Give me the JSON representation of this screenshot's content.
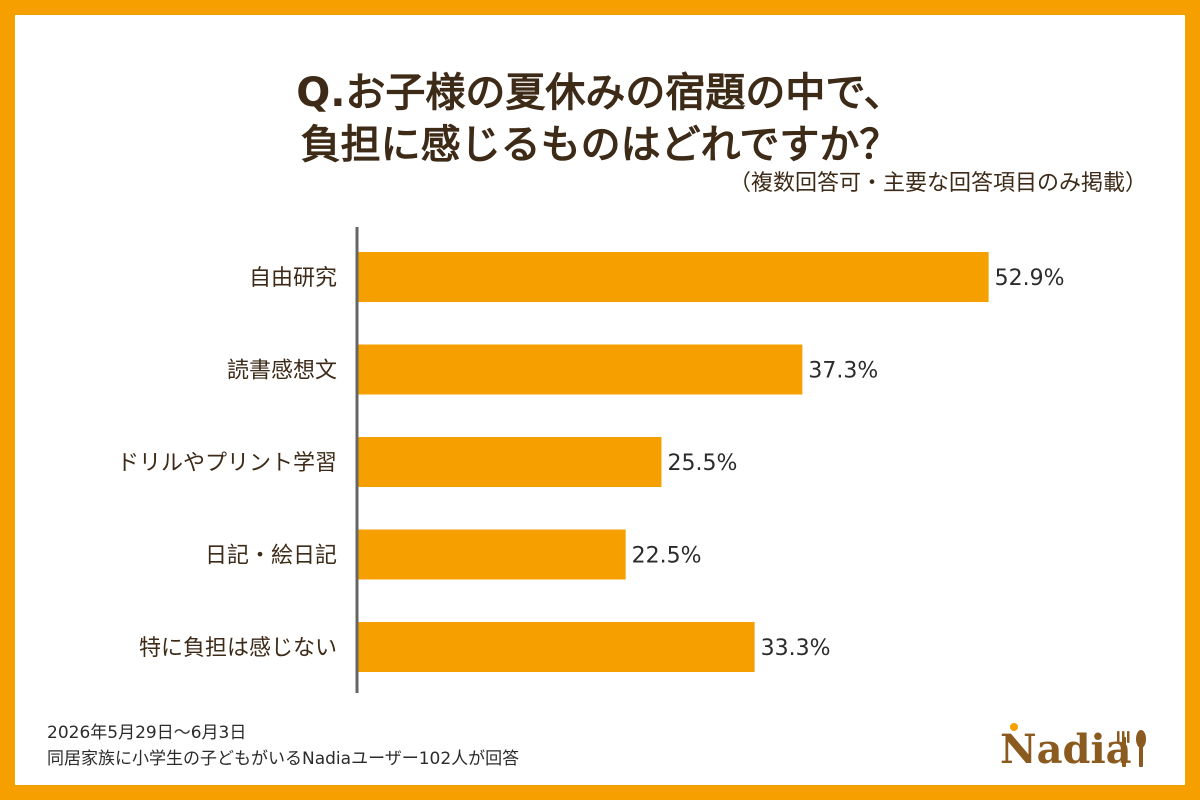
{
  "title_line1": "Q.お子様の夏休みの宿題の中で、",
  "title_line2": "負担に感じるものはどれですか？",
  "subtitle": "（複数回答可・主要な回答項目のみ掲載）",
  "footnote_line1": "2026年5月29日〜6月3日",
  "footnote_line2": "同居家族に小学生の子どもがいるNadiaユーザー102人が回答",
  "logo_text": "Nadia",
  "colors": {
    "frame": "#F5A000",
    "bar": "#F5A000",
    "axis": "#666666",
    "text": "#3d2a17"
  },
  "chart_data": {
    "type": "bar",
    "orientation": "horizontal",
    "categories": [
      "自由研究",
      "読書感想文",
      "ドリルやプリント学習",
      "日記・絵日記",
      "特に負担は感じない"
    ],
    "values": [
      52.9,
      37.3,
      25.5,
      22.5,
      33.3
    ],
    "value_labels": [
      "52.9%",
      "37.3%",
      "25.5%",
      "22.5%",
      "33.3%"
    ],
    "unit": "%",
    "grid": false
  }
}
